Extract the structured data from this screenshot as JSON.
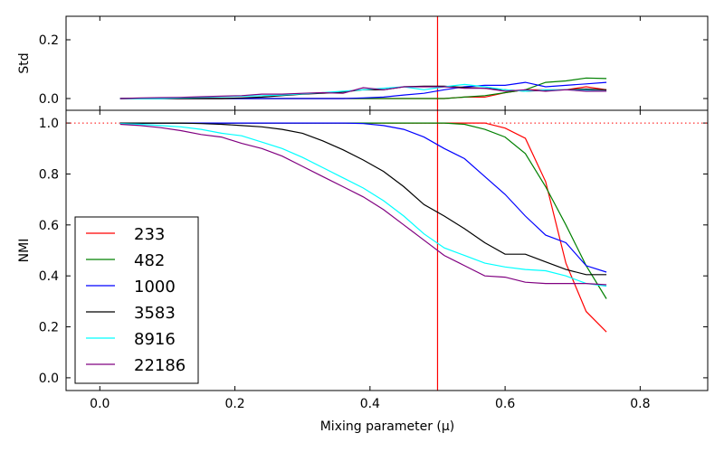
{
  "chart_data": {
    "type": "line",
    "xlabel": "Mixing parameter (μ)",
    "xlim": [
      -0.05,
      0.9
    ],
    "xticks": [
      0.0,
      0.2,
      0.4,
      0.6,
      0.8
    ],
    "x": [
      0.03,
      0.06,
      0.09,
      0.12,
      0.15,
      0.18,
      0.21,
      0.24,
      0.27,
      0.3,
      0.33,
      0.36,
      0.39,
      0.42,
      0.45,
      0.48,
      0.51,
      0.54,
      0.57,
      0.6,
      0.63,
      0.66,
      0.69,
      0.72,
      0.75
    ],
    "vline_x": 0.5,
    "hline_y": 1.0,
    "panels": [
      {
        "id": "std",
        "ylabel": "Std",
        "ylim": [
          -0.04,
          0.28
        ],
        "yticks": [
          0.0,
          0.2
        ],
        "series": [
          {
            "name": "233",
            "color": "#ff0000",
            "values": [
              0,
              0,
              0,
              0,
              0,
              0,
              0,
              0,
              0,
              0,
              0,
              0,
              0,
              0,
              0,
              0,
              0,
              0.005,
              0.005,
              0.02,
              0.03,
              0.03,
              0.03,
              0.04,
              0.03
            ]
          },
          {
            "name": "482",
            "color": "#008000",
            "values": [
              0,
              0,
              0,
              0,
              0,
              0,
              0,
              0,
              0,
              0,
              0,
              0,
              0,
              0,
              0,
              0,
              0,
              0.005,
              0.01,
              0.02,
              0.03,
              0.055,
              0.06,
              0.07,
              0.068
            ]
          },
          {
            "name": "1000",
            "color": "#0000ff",
            "values": [
              0,
              0,
              0,
              0,
              0,
              0,
              0,
              0,
              0,
              0,
              0,
              0,
              0.002,
              0.005,
              0.012,
              0.018,
              0.03,
              0.04,
              0.045,
              0.045,
              0.055,
              0.04,
              0.045,
              0.05,
              0.055
            ]
          },
          {
            "name": "3583",
            "color": "#000000",
            "values": [
              0,
              0,
              0,
              0,
              0,
              0,
              0.002,
              0.005,
              0.01,
              0.015,
              0.018,
              0.022,
              0.03,
              0.03,
              0.04,
              0.042,
              0.042,
              0.038,
              0.035,
              0.03,
              0.025,
              0.028,
              0.03,
              0.032,
              0.03
            ]
          },
          {
            "name": "8916",
            "color": "#00ffff",
            "values": [
              0,
              0,
              0,
              0.002,
              0.004,
              0.006,
              0.008,
              0.01,
              0.012,
              0.016,
              0.02,
              0.025,
              0.03,
              0.035,
              0.04,
              0.03,
              0.04,
              0.048,
              0.04,
              0.03,
              0.025,
              0.03,
              0.03,
              0.028,
              0.025
            ]
          },
          {
            "name": "22186",
            "color": "#800080",
            "values": [
              0,
              0.002,
              0.003,
              0.004,
              0.006,
              0.008,
              0.01,
              0.015,
              0.015,
              0.018,
              0.02,
              0.018,
              0.037,
              0.03,
              0.04,
              0.04,
              0.04,
              0.035,
              0.035,
              0.025,
              0.03,
              0.025,
              0.03,
              0.025,
              0.025
            ]
          }
        ]
      },
      {
        "id": "nmi",
        "ylabel": "NMI",
        "ylim": [
          -0.05,
          1.05
        ],
        "yticks": [
          0.0,
          0.2,
          0.4,
          0.6,
          0.8,
          1.0
        ],
        "series": [
          {
            "name": "233",
            "color": "#ff0000",
            "values": [
              1,
              1,
              1,
              1,
              1,
              1,
              1,
              1,
              1,
              1,
              1,
              1,
              1,
              1,
              1,
              1,
              1,
              1,
              1,
              0.98,
              0.94,
              0.77,
              0.45,
              0.26,
              0.18
            ]
          },
          {
            "name": "482",
            "color": "#008000",
            "values": [
              1,
              1,
              1,
              1,
              1,
              1,
              1,
              1,
              1,
              1,
              1,
              1,
              1,
              1,
              1,
              1,
              1,
              0.995,
              0.975,
              0.945,
              0.88,
              0.75,
              0.6,
              0.44,
              0.31
            ]
          },
          {
            "name": "1000",
            "color": "#0000ff",
            "values": [
              1,
              1,
              1,
              1,
              1,
              1,
              1,
              1,
              1,
              1,
              1,
              1,
              0.998,
              0.99,
              0.975,
              0.945,
              0.9,
              0.86,
              0.79,
              0.72,
              0.635,
              0.56,
              0.53,
              0.44,
              0.415
            ]
          },
          {
            "name": "3583",
            "color": "#000000",
            "values": [
              1,
              1,
              1,
              1,
              0.998,
              0.995,
              0.99,
              0.985,
              0.975,
              0.96,
              0.93,
              0.895,
              0.855,
              0.81,
              0.75,
              0.68,
              0.635,
              0.585,
              0.53,
              0.485,
              0.485,
              0.455,
              0.425,
              0.405,
              0.405
            ]
          },
          {
            "name": "8916",
            "color": "#00ffff",
            "values": [
              0.998,
              0.995,
              0.99,
              0.985,
              0.975,
              0.96,
              0.95,
              0.925,
              0.9,
              0.865,
              0.825,
              0.785,
              0.745,
              0.695,
              0.635,
              0.565,
              0.51,
              0.48,
              0.45,
              0.435,
              0.425,
              0.42,
              0.4,
              0.37,
              0.36
            ]
          },
          {
            "name": "22186",
            "color": "#800080",
            "values": [
              0.995,
              0.99,
              0.982,
              0.97,
              0.955,
              0.945,
              0.92,
              0.9,
              0.87,
              0.83,
              0.79,
              0.75,
              0.71,
              0.66,
              0.6,
              0.54,
              0.48,
              0.44,
              0.4,
              0.395,
              0.375,
              0.37,
              0.37,
              0.37,
              0.365
            ]
          }
        ]
      }
    ],
    "legend": {
      "placement": "lower-left",
      "entries": [
        "233",
        "482",
        "1000",
        "3583",
        "8916",
        "22186"
      ]
    }
  }
}
